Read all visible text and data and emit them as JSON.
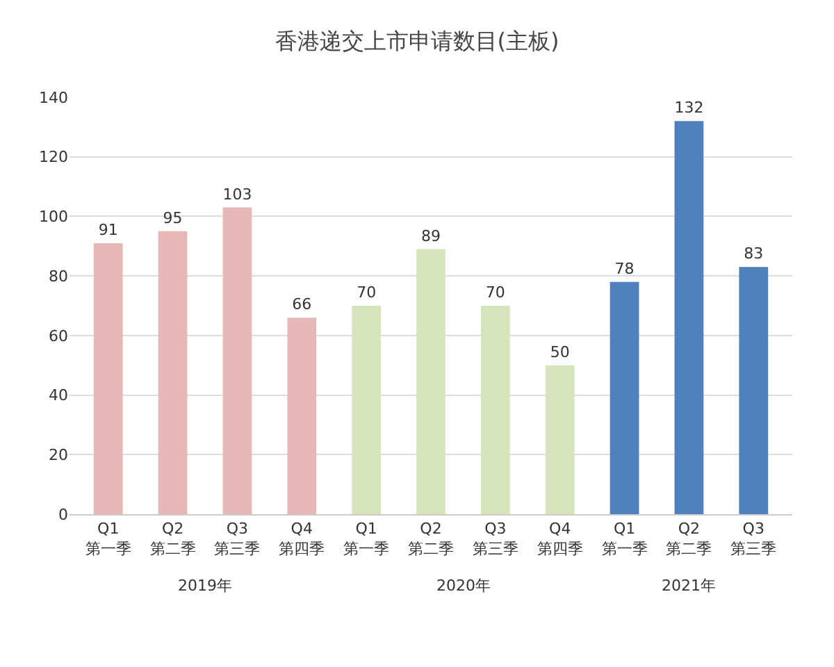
{
  "chart_data": {
    "type": "bar",
    "title": "香港递交上市申请数目(主板)",
    "categories": [
      "Q1\n第一季",
      "Q2\n第二季",
      "Q3\n第三季",
      "Q4\n第四季",
      "Q1\n第一季",
      "Q2\n第二季",
      "Q3\n第三季",
      "Q4\n第四季",
      "Q1\n第一季",
      "Q2\n第二季",
      "Q3\n第三季"
    ],
    "values": [
      91,
      95,
      103,
      66,
      70,
      89,
      70,
      50,
      78,
      132,
      83
    ],
    "colors": [
      "#e6b9b8",
      "#e6b9b8",
      "#e6b9b8",
      "#e6b9b8",
      "#d7e4bd",
      "#d7e4bd",
      "#d7e4bd",
      "#d7e4bd",
      "#4f81bd",
      "#4f81bd",
      "#4f81bd"
    ],
    "annotations": [
      "2019年",
      "2020年",
      "2021年"
    ],
    "data_labels": true,
    "ylim": [
      0,
      140
    ],
    "yticks": [
      0,
      20,
      40,
      60,
      80,
      100,
      120,
      140
    ],
    "grid": "y"
  }
}
